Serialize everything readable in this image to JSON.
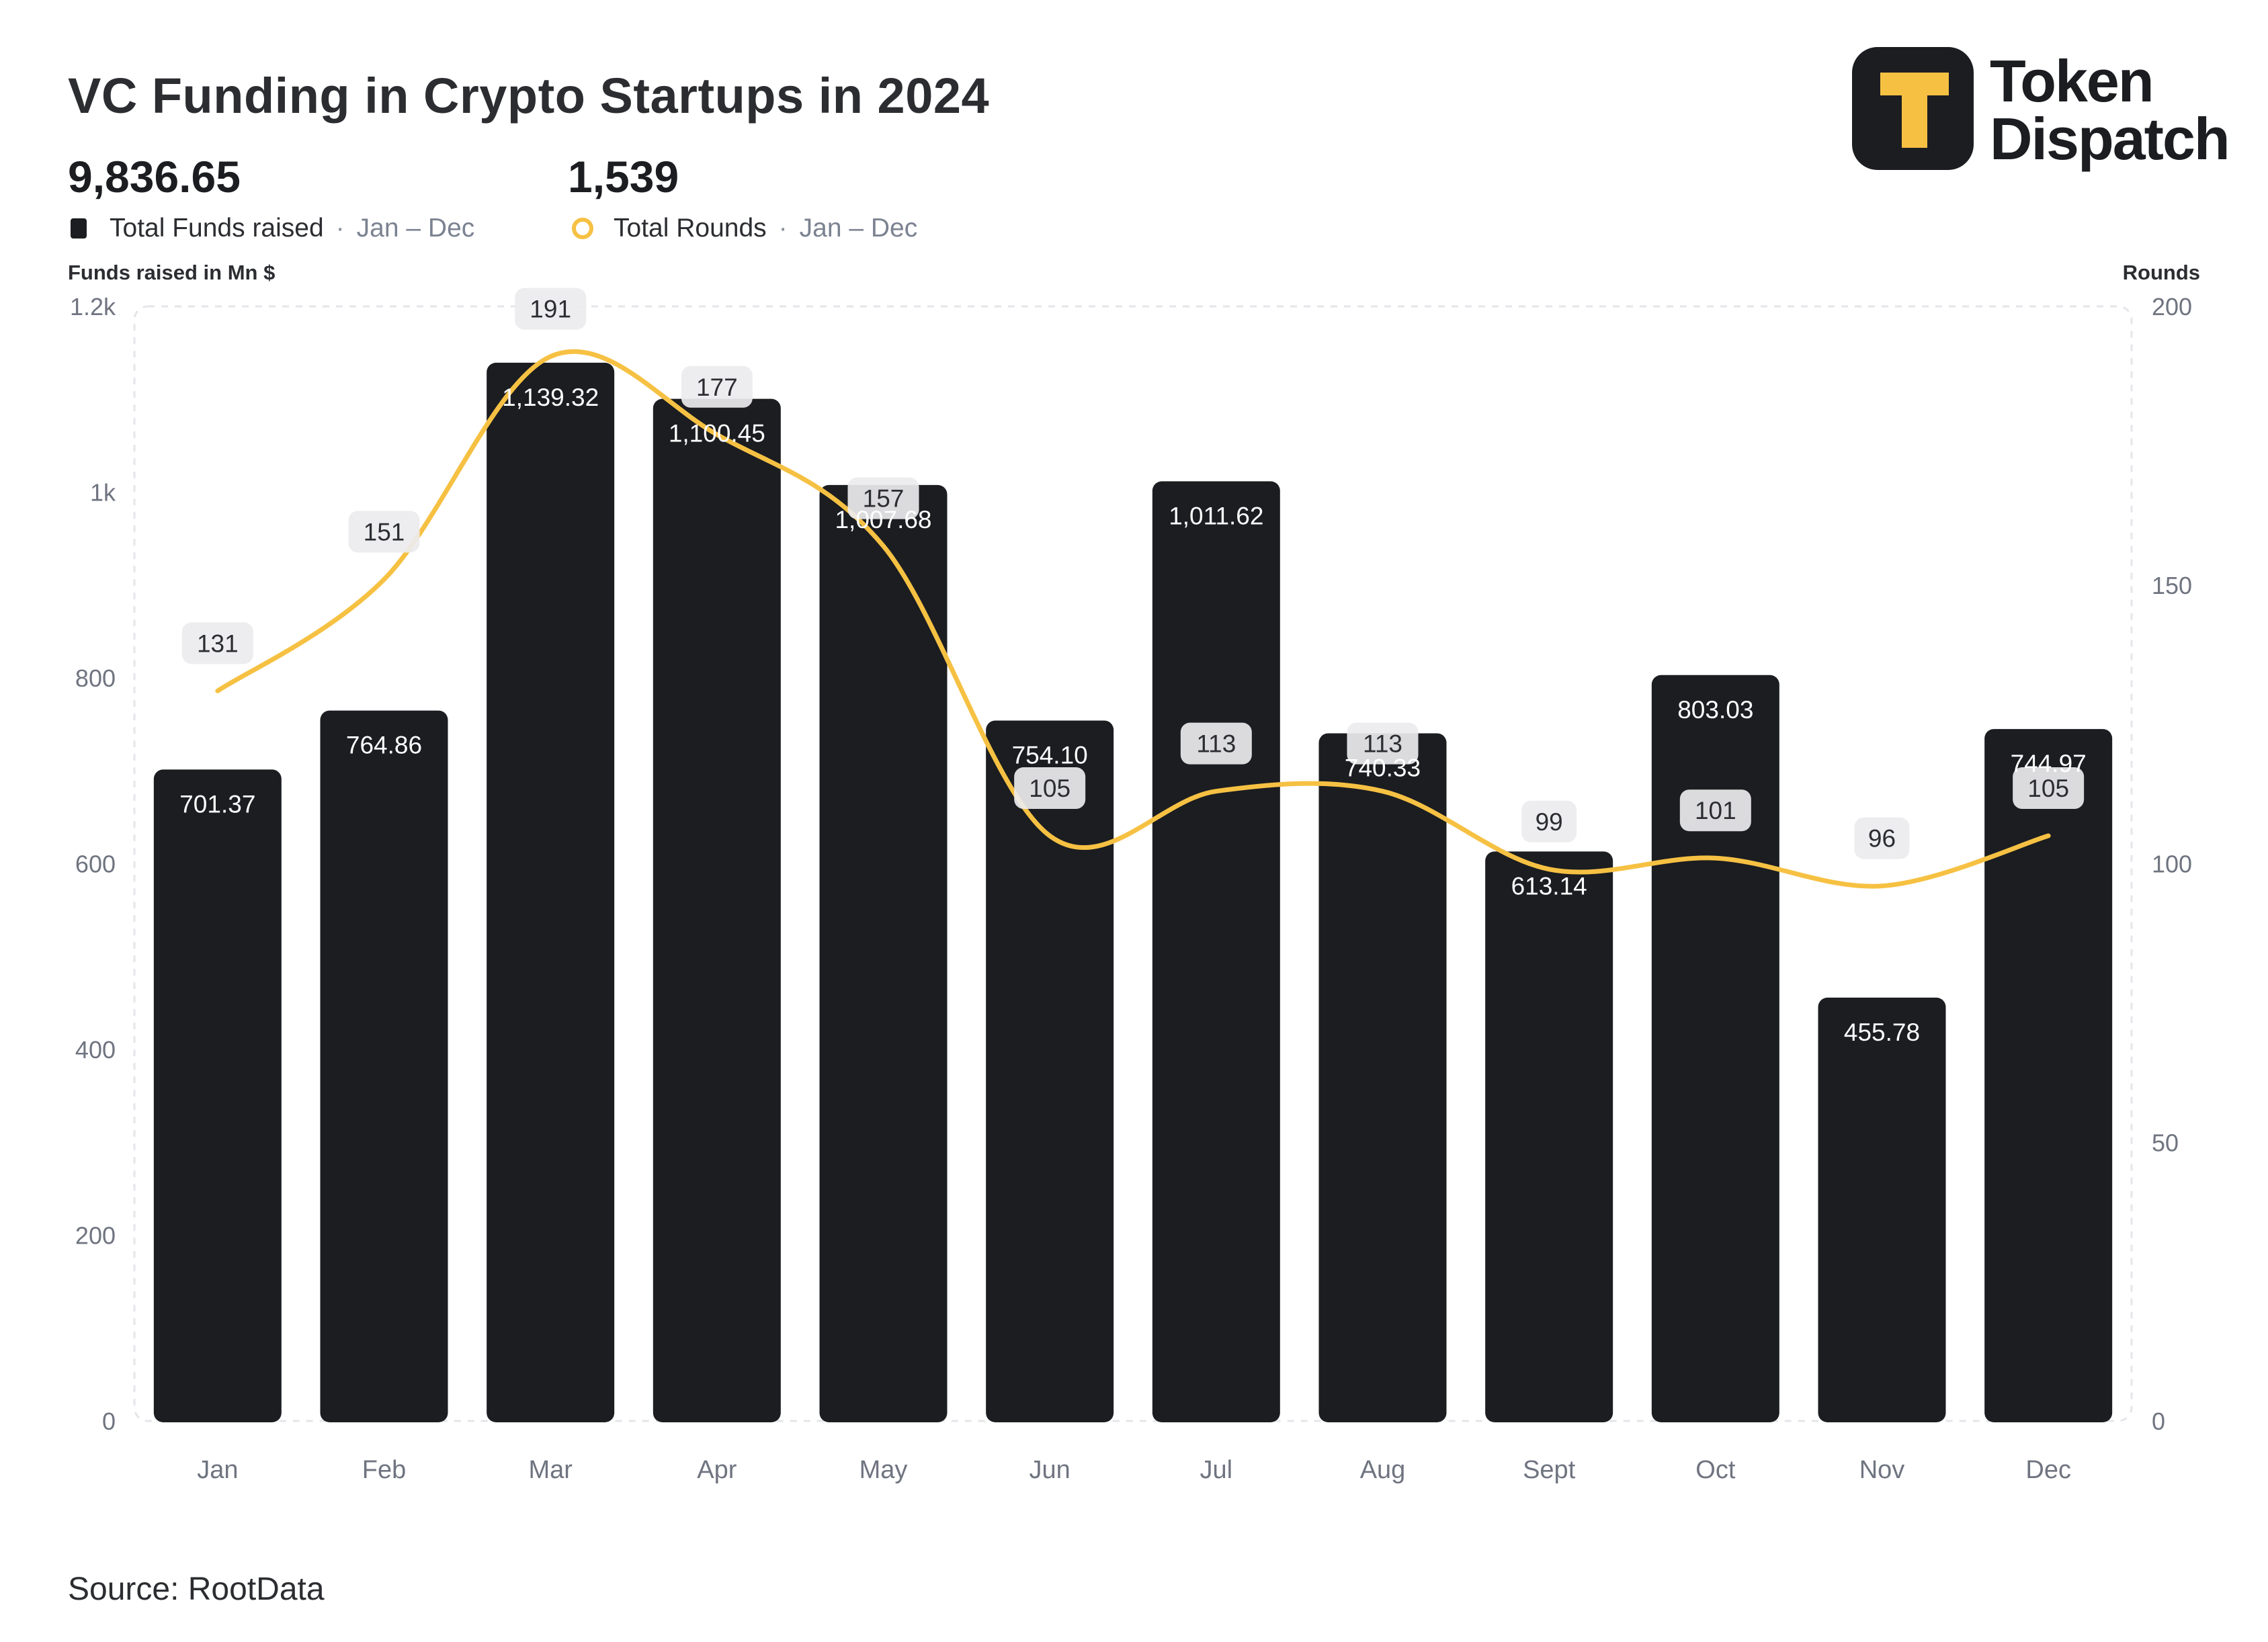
{
  "title": "VC Funding in Crypto Startups in 2024",
  "kpis": [
    {
      "value": "9,836.65",
      "label": "Total Funds raised",
      "range": "Jan – Dec"
    },
    {
      "value": "1,539",
      "label": "Total Rounds",
      "range": "Jan – Dec"
    }
  ],
  "logo": {
    "line1": "Token",
    "line2": "Dispatch"
  },
  "source": "Source: RootData",
  "colors": {
    "bar": "#1b1d21",
    "line": "#f6c143",
    "background": "#ffffff"
  },
  "chart_data": {
    "type": "bar",
    "categories": [
      "Jan",
      "Feb",
      "Mar",
      "Apr",
      "May",
      "Jun",
      "Jul",
      "Aug",
      "Sept",
      "Oct",
      "Nov",
      "Dec"
    ],
    "series": [
      {
        "name": "Total Funds raised",
        "type": "bar",
        "axis": "left",
        "values": [
          701.37,
          764.86,
          1139.32,
          1100.45,
          1007.68,
          754.1,
          1011.62,
          740.33,
          613.14,
          803.03,
          455.78,
          744.97
        ],
        "labels": [
          "701.37",
          "764.86",
          "1,139.32",
          "1,100.45",
          "1,007.68",
          "754.10",
          "1,011.62",
          "740.33",
          "613.14",
          "803.03",
          "455.78",
          "744.97"
        ]
      },
      {
        "name": "Total Rounds",
        "type": "line",
        "axis": "right",
        "values": [
          131,
          151,
          191,
          177,
          157,
          105,
          113,
          113,
          99,
          101,
          96,
          105
        ],
        "labels": [
          "131",
          "151",
          "191",
          "177",
          "157",
          "105",
          "113",
          "113",
          "99",
          "101",
          "96",
          "105"
        ]
      }
    ],
    "ylabel_left": "Funds raised in Mn $",
    "ylabel_right": "Rounds",
    "ylim_left": [
      0,
      1200
    ],
    "ylim_right": [
      0,
      200
    ],
    "yticks_left": [
      "0",
      "200",
      "400",
      "600",
      "800",
      "1k",
      "1.2k"
    ],
    "yticks_right": [
      "0",
      "50",
      "100",
      "150",
      "200"
    ],
    "grid": false,
    "legend": "top-left"
  }
}
